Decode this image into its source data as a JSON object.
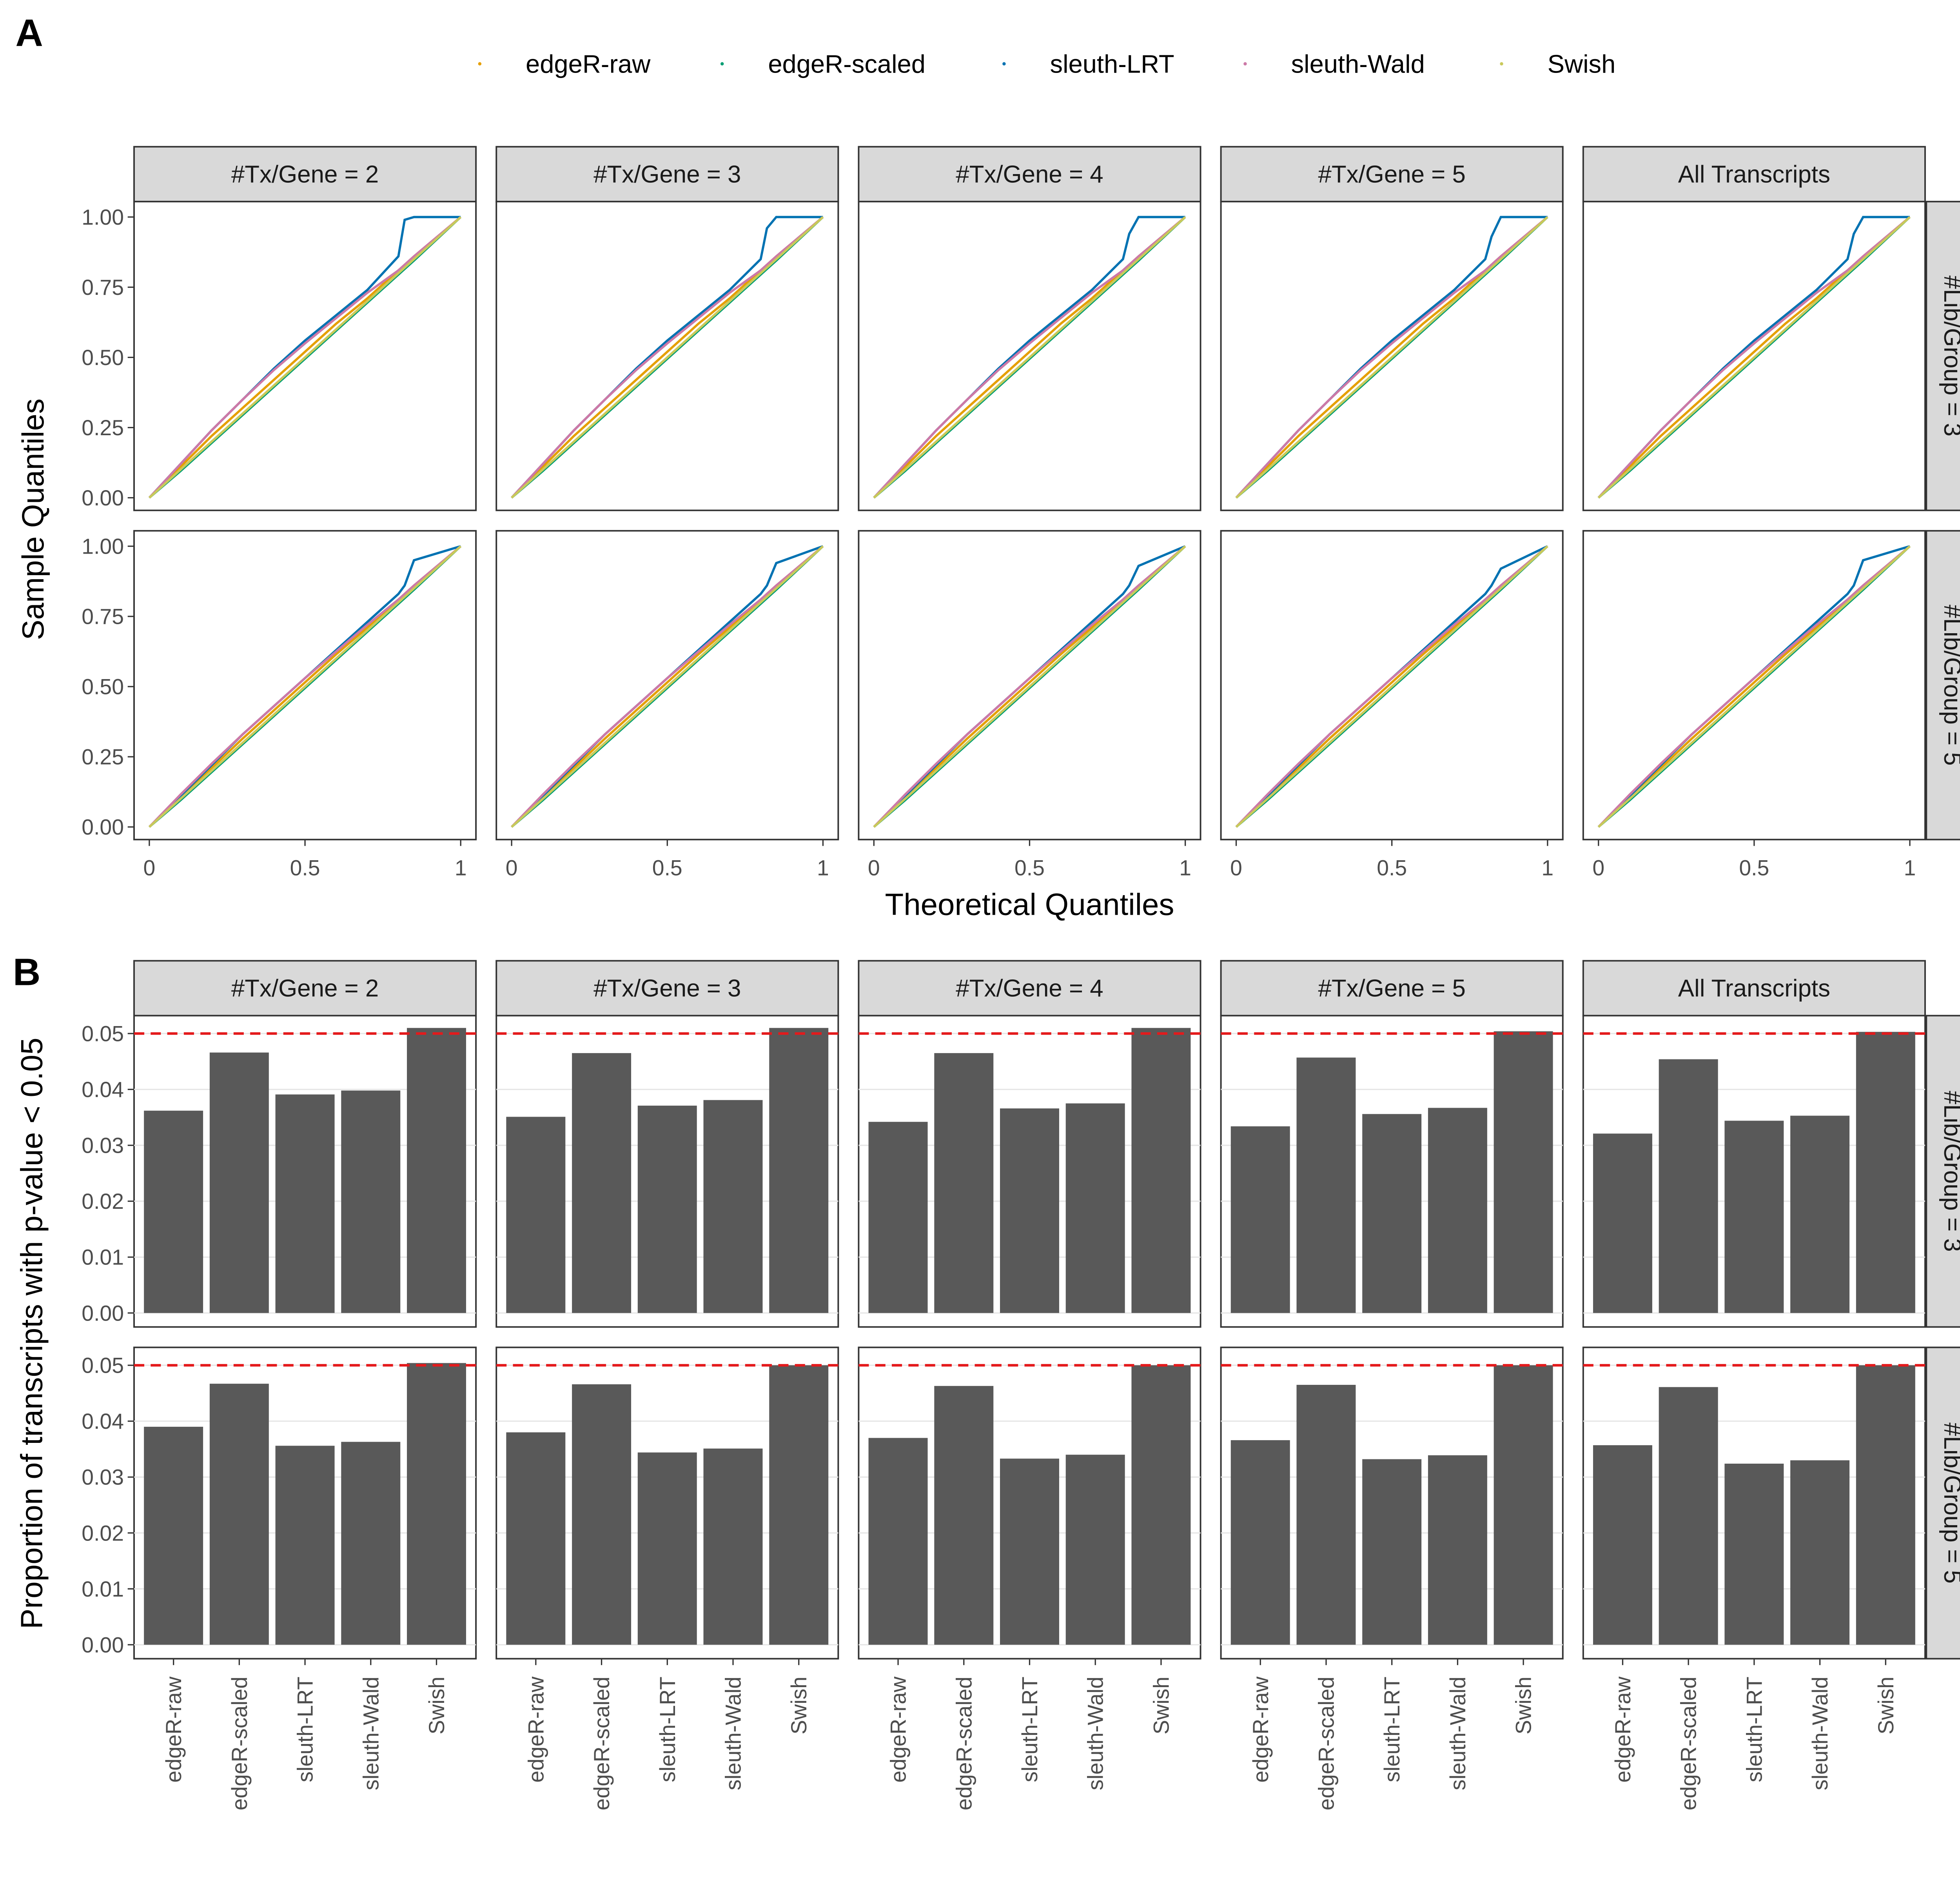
{
  "chart_data": [
    {
      "type": "line",
      "panel_label": "A",
      "x_label": "Theoretical Quantiles",
      "y_label": "Sample Quantiles",
      "columns": [
        "#Tx/Gene = 2",
        "#Tx/Gene = 3",
        "#Tx/Gene = 4",
        "#Tx/Gene = 5",
        "All Transcripts"
      ],
      "rows": [
        "#Lib/Group = 3",
        "#Lib/Group = 5"
      ],
      "xlim": [
        -0.049,
        1.049
      ],
      "xticks": [
        0,
        0.5,
        1
      ],
      "ylim": [
        -0.045,
        1.055
      ],
      "yticks": [
        {
          "value": 0,
          "label": "0.00"
        },
        0.25,
        {
          "value": 0.5,
          "label": "0.50"
        },
        0.75,
        {
          "value": 1,
          "label": "1.00"
        }
      ],
      "series": [
        {
          "name": "edgeR-raw",
          "color": "#E69F00"
        },
        {
          "name": "edgeR-scaled",
          "color": "#009E73"
        },
        {
          "name": "sleuth-LRT",
          "color": "#0072B2"
        },
        {
          "name": "sleuth-Wald",
          "color": "#CC79A7"
        },
        {
          "name": "Swish",
          "color": "#C9C95A"
        }
      ],
      "x": [
        0,
        0.1,
        0.2,
        0.3,
        0.4,
        0.5,
        0.6,
        0.7,
        0.8,
        0.82,
        0.85,
        1
      ],
      "panel_values": [
        [
          [
            [
              0,
              0.11,
              0.22,
              0.32,
              0.42,
              0.52,
              0.62,
              0.71,
              0.81,
              0.83,
              0.86,
              1
            ],
            [
              0,
              0.095,
              0.195,
              0.295,
              0.395,
              0.495,
              0.595,
              0.695,
              0.795,
              0.815,
              0.845,
              1
            ],
            [
              0,
              0.12,
              0.24,
              0.35,
              0.46,
              0.56,
              0.65,
              0.74,
              0.86,
              0.99,
              1,
              1
            ],
            [
              0,
              0.12,
              0.24,
              0.35,
              0.455,
              0.55,
              0.64,
              0.73,
              0.81,
              0.83,
              0.86,
              1
            ],
            [
              0,
              0.1,
              0.2,
              0.3,
              0.4,
              0.5,
              0.6,
              0.7,
              0.8,
              0.82,
              0.85,
              1
            ]
          ],
          [
            [
              0,
              0.11,
              0.22,
              0.32,
              0.42,
              0.52,
              0.62,
              0.71,
              0.81,
              0.83,
              0.86,
              1
            ],
            [
              0,
              0.095,
              0.195,
              0.295,
              0.395,
              0.495,
              0.595,
              0.695,
              0.795,
              0.815,
              0.845,
              1
            ],
            [
              0,
              0.12,
              0.24,
              0.35,
              0.46,
              0.56,
              0.65,
              0.74,
              0.85,
              0.96,
              1,
              1
            ],
            [
              0,
              0.12,
              0.24,
              0.35,
              0.455,
              0.55,
              0.64,
              0.73,
              0.81,
              0.83,
              0.86,
              1
            ],
            [
              0,
              0.1,
              0.2,
              0.3,
              0.4,
              0.5,
              0.6,
              0.7,
              0.8,
              0.82,
              0.85,
              1
            ]
          ],
          [
            [
              0,
              0.11,
              0.22,
              0.32,
              0.42,
              0.52,
              0.62,
              0.71,
              0.81,
              0.83,
              0.86,
              1
            ],
            [
              0,
              0.095,
              0.195,
              0.295,
              0.395,
              0.495,
              0.595,
              0.695,
              0.795,
              0.815,
              0.845,
              1
            ],
            [
              0,
              0.12,
              0.24,
              0.35,
              0.46,
              0.56,
              0.65,
              0.74,
              0.85,
              0.94,
              1,
              1
            ],
            [
              0,
              0.12,
              0.24,
              0.35,
              0.455,
              0.55,
              0.64,
              0.73,
              0.81,
              0.83,
              0.86,
              1
            ],
            [
              0,
              0.1,
              0.2,
              0.3,
              0.4,
              0.5,
              0.6,
              0.7,
              0.8,
              0.82,
              0.85,
              1
            ]
          ],
          [
            [
              0,
              0.11,
              0.22,
              0.32,
              0.42,
              0.52,
              0.62,
              0.71,
              0.81,
              0.83,
              0.86,
              1
            ],
            [
              0,
              0.095,
              0.195,
              0.295,
              0.395,
              0.495,
              0.595,
              0.695,
              0.795,
              0.815,
              0.845,
              1
            ],
            [
              0,
              0.12,
              0.24,
              0.35,
              0.46,
              0.56,
              0.65,
              0.74,
              0.85,
              0.93,
              1,
              1
            ],
            [
              0,
              0.12,
              0.24,
              0.35,
              0.455,
              0.55,
              0.64,
              0.73,
              0.81,
              0.83,
              0.86,
              1
            ],
            [
              0,
              0.1,
              0.2,
              0.3,
              0.4,
              0.5,
              0.6,
              0.7,
              0.8,
              0.82,
              0.85,
              1
            ]
          ],
          [
            [
              0,
              0.11,
              0.22,
              0.32,
              0.42,
              0.52,
              0.62,
              0.71,
              0.81,
              0.83,
              0.86,
              1
            ],
            [
              0,
              0.095,
              0.195,
              0.295,
              0.395,
              0.495,
              0.595,
              0.695,
              0.795,
              0.815,
              0.845,
              1
            ],
            [
              0,
              0.12,
              0.24,
              0.35,
              0.46,
              0.56,
              0.65,
              0.74,
              0.85,
              0.94,
              1,
              1
            ],
            [
              0,
              0.12,
              0.24,
              0.35,
              0.455,
              0.55,
              0.64,
              0.73,
              0.81,
              0.83,
              0.86,
              1
            ],
            [
              0,
              0.1,
              0.2,
              0.3,
              0.4,
              0.5,
              0.6,
              0.7,
              0.8,
              0.82,
              0.85,
              1
            ]
          ]
        ],
        [
          [
            [
              0,
              0.105,
              0.21,
              0.315,
              0.415,
              0.515,
              0.615,
              0.71,
              0.81,
              0.83,
              0.86,
              1
            ],
            [
              0,
              0.095,
              0.195,
              0.295,
              0.395,
              0.495,
              0.595,
              0.695,
              0.795,
              0.815,
              0.845,
              1
            ],
            [
              0,
              0.11,
              0.22,
              0.33,
              0.43,
              0.53,
              0.63,
              0.73,
              0.83,
              0.86,
              0.95,
              1
            ],
            [
              0,
              0.115,
              0.225,
              0.33,
              0.43,
              0.53,
              0.625,
              0.72,
              0.81,
              0.83,
              0.86,
              1
            ],
            [
              0,
              0.1,
              0.2,
              0.3,
              0.4,
              0.5,
              0.6,
              0.7,
              0.8,
              0.82,
              0.85,
              1
            ]
          ],
          [
            [
              0,
              0.105,
              0.21,
              0.315,
              0.415,
              0.515,
              0.615,
              0.71,
              0.81,
              0.83,
              0.86,
              1
            ],
            [
              0,
              0.095,
              0.195,
              0.295,
              0.395,
              0.495,
              0.595,
              0.695,
              0.795,
              0.815,
              0.845,
              1
            ],
            [
              0,
              0.11,
              0.22,
              0.33,
              0.43,
              0.53,
              0.63,
              0.73,
              0.83,
              0.86,
              0.94,
              1
            ],
            [
              0,
              0.115,
              0.225,
              0.33,
              0.43,
              0.53,
              0.625,
              0.72,
              0.81,
              0.83,
              0.86,
              1
            ],
            [
              0,
              0.1,
              0.2,
              0.3,
              0.4,
              0.5,
              0.6,
              0.7,
              0.8,
              0.82,
              0.85,
              1
            ]
          ],
          [
            [
              0,
              0.105,
              0.21,
              0.315,
              0.415,
              0.515,
              0.615,
              0.71,
              0.81,
              0.83,
              0.86,
              1
            ],
            [
              0,
              0.095,
              0.195,
              0.295,
              0.395,
              0.495,
              0.595,
              0.695,
              0.795,
              0.815,
              0.845,
              1
            ],
            [
              0,
              0.11,
              0.22,
              0.33,
              0.43,
              0.53,
              0.63,
              0.73,
              0.83,
              0.86,
              0.93,
              1
            ],
            [
              0,
              0.115,
              0.225,
              0.33,
              0.43,
              0.53,
              0.625,
              0.72,
              0.81,
              0.83,
              0.86,
              1
            ],
            [
              0,
              0.1,
              0.2,
              0.3,
              0.4,
              0.5,
              0.6,
              0.7,
              0.8,
              0.82,
              0.85,
              1
            ]
          ],
          [
            [
              0,
              0.105,
              0.21,
              0.315,
              0.415,
              0.515,
              0.615,
              0.71,
              0.81,
              0.83,
              0.86,
              1
            ],
            [
              0,
              0.095,
              0.195,
              0.295,
              0.395,
              0.495,
              0.595,
              0.695,
              0.795,
              0.815,
              0.845,
              1
            ],
            [
              0,
              0.11,
              0.22,
              0.33,
              0.43,
              0.53,
              0.63,
              0.73,
              0.83,
              0.86,
              0.92,
              1
            ],
            [
              0,
              0.115,
              0.225,
              0.33,
              0.43,
              0.53,
              0.625,
              0.72,
              0.81,
              0.83,
              0.86,
              1
            ],
            [
              0,
              0.1,
              0.2,
              0.3,
              0.4,
              0.5,
              0.6,
              0.7,
              0.8,
              0.82,
              0.85,
              1
            ]
          ],
          [
            [
              0,
              0.105,
              0.21,
              0.315,
              0.415,
              0.515,
              0.615,
              0.71,
              0.81,
              0.83,
              0.86,
              1
            ],
            [
              0,
              0.095,
              0.195,
              0.295,
              0.395,
              0.495,
              0.595,
              0.695,
              0.795,
              0.815,
              0.845,
              1
            ],
            [
              0,
              0.11,
              0.22,
              0.33,
              0.43,
              0.53,
              0.63,
              0.73,
              0.83,
              0.86,
              0.95,
              1
            ],
            [
              0,
              0.115,
              0.225,
              0.33,
              0.43,
              0.53,
              0.625,
              0.72,
              0.81,
              0.83,
              0.86,
              1
            ],
            [
              0,
              0.1,
              0.2,
              0.3,
              0.4,
              0.5,
              0.6,
              0.7,
              0.8,
              0.82,
              0.85,
              1
            ]
          ]
        ]
      ]
    },
    {
      "type": "bar",
      "panel_label": "B",
      "y_label": "Proportion of transcripts with p-value < 0.05",
      "columns": [
        "#Tx/Gene = 2",
        "#Tx/Gene = 3",
        "#Tx/Gene = 4",
        "#Tx/Gene = 5",
        "All Transcripts"
      ],
      "rows": [
        "#Lib/Group = 3",
        "#Lib/Group = 5"
      ],
      "categories": [
        "edgeR-raw",
        "edgeR-scaled",
        "sleuth-LRT",
        "sleuth-Wald",
        "Swish"
      ],
      "color": "#595959",
      "grid": true,
      "hline": 0.05,
      "hline_color": "#E41A1C",
      "ylim": [
        -0.0025,
        0.0532
      ],
      "yticks": [
        {
          "value": 0,
          "label": "0.00"
        },
        0.01,
        0.02,
        0.03,
        0.04,
        0.05
      ],
      "panel_values": [
        [
          [
            0.0362,
            0.0466,
            0.0391,
            0.0398,
            0.051
          ],
          [
            0.0351,
            0.0465,
            0.0371,
            0.0381,
            0.051
          ],
          [
            0.0342,
            0.0465,
            0.0366,
            0.0375,
            0.051
          ],
          [
            0.0334,
            0.0457,
            0.0356,
            0.0367,
            0.0504
          ],
          [
            0.0321,
            0.0454,
            0.0344,
            0.0353,
            0.0503
          ]
        ],
        [
          [
            0.039,
            0.0467,
            0.0356,
            0.0363,
            0.0504
          ],
          [
            0.038,
            0.0466,
            0.0344,
            0.0351,
            0.05
          ],
          [
            0.037,
            0.0463,
            0.0333,
            0.034,
            0.05
          ],
          [
            0.0366,
            0.0465,
            0.0332,
            0.0339,
            0.05
          ],
          [
            0.0357,
            0.0461,
            0.0324,
            0.033,
            0.05
          ]
        ]
      ]
    }
  ]
}
